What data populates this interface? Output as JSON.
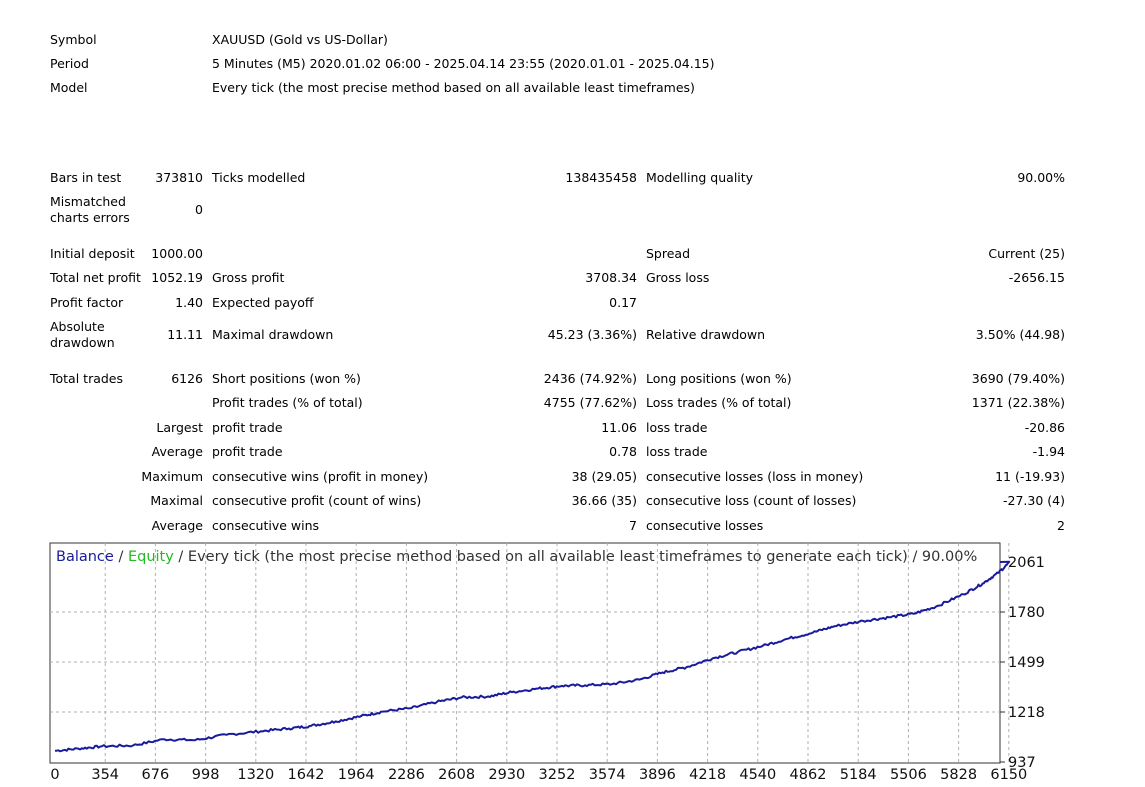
{
  "header": {
    "symbol": {
      "label": "Symbol",
      "value": "XAUUSD (Gold vs US-Dollar)"
    },
    "period": {
      "label": "Period",
      "value": "5 Minutes (M5) 2020.01.02 06:00 - 2025.04.14 23:55 (2020.01.01 - 2025.04.15)"
    },
    "model": {
      "label": "Model",
      "value": "Every tick (the most precise method based on all available least timeframes)"
    }
  },
  "stats": {
    "bars_in_test": {
      "label": "Bars in test",
      "value": "373810"
    },
    "ticks_modelled": {
      "label": "Ticks modelled",
      "value": "138435458"
    },
    "modelling_quality": {
      "label": "Modelling quality",
      "value": "90.00%"
    },
    "mismatched": {
      "label": "Mismatched charts errors",
      "value": "0"
    },
    "initial_deposit": {
      "label": "Initial deposit",
      "value": "1000.00"
    },
    "spread": {
      "label": "Spread",
      "value": "Current (25)"
    },
    "total_net_profit": {
      "label": "Total net profit",
      "value": "1052.19"
    },
    "gross_profit": {
      "label": "Gross profit",
      "value": "3708.34"
    },
    "gross_loss": {
      "label": "Gross loss",
      "value": "-2656.15"
    },
    "profit_factor": {
      "label": "Profit factor",
      "value": "1.40"
    },
    "expected_payoff": {
      "label": "Expected payoff",
      "value": "0.17"
    },
    "absolute_drawdown": {
      "label": "Absolute drawdown",
      "value": "11.11"
    },
    "maximal_drawdown": {
      "label": "Maximal drawdown",
      "value": "45.23 (3.36%)"
    },
    "relative_drawdown": {
      "label": "Relative drawdown",
      "value": "3.50% (44.98)"
    },
    "total_trades": {
      "label": "Total trades",
      "value": "6126"
    },
    "short_positions": {
      "label": "Short positions (won %)",
      "value": "2436 (74.92%)"
    },
    "long_positions": {
      "label": "Long positions (won %)",
      "value": "3690 (79.40%)"
    },
    "profit_trades": {
      "label": "Profit trades (% of total)",
      "value": "4755 (77.62%)"
    },
    "loss_trades": {
      "label": "Loss trades (% of total)",
      "value": "1371 (22.38%)"
    },
    "largest": {
      "prefix": "Largest",
      "profit_label": "profit trade",
      "profit_value": "11.06",
      "loss_label": "loss trade",
      "loss_value": "-20.86"
    },
    "average": {
      "prefix": "Average",
      "profit_label": "profit trade",
      "profit_value": "0.78",
      "loss_label": "loss trade",
      "loss_value": "-1.94"
    },
    "maximum": {
      "prefix": "Maximum",
      "wins_label": "consecutive wins (profit in money)",
      "wins_value": "38 (29.05)",
      "losses_label": "consecutive losses (loss in money)",
      "losses_value": "11 (-19.93)"
    },
    "maximal": {
      "prefix": "Maximal",
      "profit_label": "consecutive profit (count of wins)",
      "profit_value": "36.66 (35)",
      "loss_label": "consecutive loss (count of losses)",
      "loss_value": "-27.30 (4)"
    },
    "average_consec": {
      "prefix": "Average",
      "wins_label": "consecutive wins",
      "wins_value": "7",
      "losses_label": "consecutive losses",
      "losses_value": "2"
    }
  },
  "chart_data": {
    "type": "line",
    "legend": {
      "balance": "Balance",
      "sep1": " / ",
      "equity": "Equity",
      "rest": " / Every tick (the most precise method based on all available least timeframes to generate each tick) / 90.00%"
    },
    "colors": {
      "balance": "#1a1a9c",
      "equity": "#22bb22",
      "grid": "#b0b0b0"
    },
    "x_ticks": [
      "0",
      "354",
      "676",
      "998",
      "1320",
      "1642",
      "1964",
      "2286",
      "2608",
      "2930",
      "3252",
      "3574",
      "3896",
      "4218",
      "4540",
      "4862",
      "5184",
      "5506",
      "5828",
      "6150"
    ],
    "y_ticks": [
      "2061",
      "1780",
      "1499",
      "1218",
      "937"
    ],
    "xlim": [
      0,
      6126
    ],
    "ylim": [
      937,
      2061
    ],
    "series": [
      {
        "name": "Balance",
        "points": [
          [
            0,
            1000
          ],
          [
            150,
            1012
          ],
          [
            300,
            1025
          ],
          [
            500,
            1030
          ],
          [
            700,
            1065
          ],
          [
            900,
            1060
          ],
          [
            1100,
            1090
          ],
          [
            1320,
            1110
          ],
          [
            1500,
            1125
          ],
          [
            1642,
            1140
          ],
          [
            1800,
            1165
          ],
          [
            1964,
            1195
          ],
          [
            2100,
            1220
          ],
          [
            2286,
            1240
          ],
          [
            2450,
            1275
          ],
          [
            2608,
            1300
          ],
          [
            2780,
            1305
          ],
          [
            2930,
            1330
          ],
          [
            3100,
            1350
          ],
          [
            3252,
            1365
          ],
          [
            3400,
            1368
          ],
          [
            3574,
            1375
          ],
          [
            3750,
            1400
          ],
          [
            3896,
            1440
          ],
          [
            4050,
            1470
          ],
          [
            4218,
            1520
          ],
          [
            4380,
            1555
          ],
          [
            4540,
            1590
          ],
          [
            4700,
            1630
          ],
          [
            4862,
            1665
          ],
          [
            5000,
            1700
          ],
          [
            5184,
            1730
          ],
          [
            5350,
            1750
          ],
          [
            5506,
            1770
          ],
          [
            5650,
            1810
          ],
          [
            5828,
            1880
          ],
          [
            5950,
            1940
          ],
          [
            6050,
            2000
          ],
          [
            6126,
            2061
          ]
        ]
      }
    ]
  }
}
